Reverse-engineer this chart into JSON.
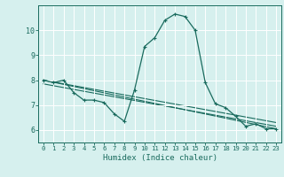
{
  "title": "",
  "xlabel": "Humidex (Indice chaleur)",
  "ylabel": "",
  "bg_color": "#d6f0ee",
  "grid_color": "#ffffff",
  "line_color": "#1a6b5e",
  "xlim": [
    -0.5,
    23.5
  ],
  "ylim": [
    5.5,
    11.0
  ],
  "yticks": [
    6,
    7,
    8,
    9,
    10
  ],
  "xtick_labels": [
    "0",
    "1",
    "2",
    "3",
    "4",
    "5",
    "6",
    "7",
    "8",
    "9",
    "10",
    "11",
    "12",
    "13",
    "14",
    "15",
    "16",
    "17",
    "18",
    "19",
    "20",
    "21",
    "22",
    "23"
  ],
  "xtick_positions": [
    0,
    1,
    2,
    3,
    4,
    5,
    6,
    7,
    8,
    9,
    10,
    11,
    12,
    13,
    14,
    15,
    16,
    17,
    18,
    19,
    20,
    21,
    22,
    23
  ],
  "series1_x": [
    0,
    1,
    2,
    3,
    4,
    5,
    6,
    7,
    8,
    9,
    10,
    11,
    12,
    13,
    14,
    15,
    16,
    17,
    18,
    19,
    20,
    21,
    22,
    23
  ],
  "series1_y": [
    8.0,
    7.9,
    8.0,
    7.5,
    7.2,
    7.2,
    7.1,
    6.65,
    6.35,
    7.6,
    9.35,
    9.7,
    10.4,
    10.65,
    10.55,
    10.0,
    7.9,
    7.05,
    6.9,
    6.55,
    6.15,
    6.25,
    6.05,
    6.05
  ],
  "series2_x": [
    0,
    23
  ],
  "series2_y": [
    8.0,
    6.05
  ],
  "series3_x": [
    0,
    23
  ],
  "series3_y": [
    7.85,
    6.15
  ],
  "series4_x": [
    0,
    23
  ],
  "series4_y": [
    8.0,
    6.3
  ]
}
